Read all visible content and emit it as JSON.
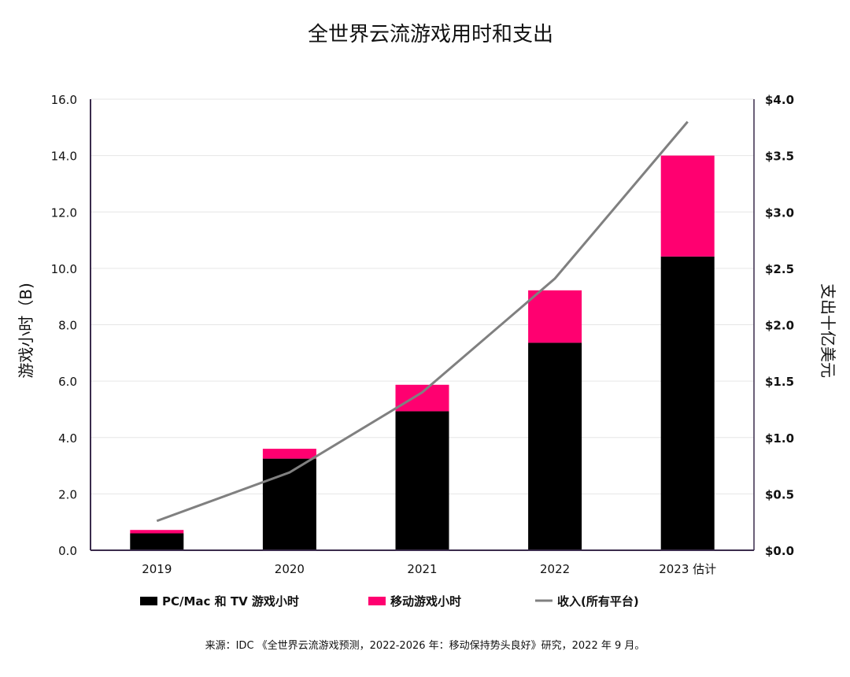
{
  "chart_data": {
    "type": "bar",
    "stacked": true,
    "title": "全世界云流游戏用时和支出",
    "categories": [
      "2019",
      "2020",
      "2021",
      "2022",
      "2023 估计"
    ],
    "ylabel": "游戏小时（B)",
    "y2label": "支出十亿美元",
    "ylim": [
      0,
      16
    ],
    "y2lim": [
      0,
      4
    ],
    "yticks": [
      "0.0",
      "2.0",
      "4.0",
      "6.0",
      "8.0",
      "10.0",
      "12.0",
      "14.0",
      "16.0"
    ],
    "y2ticks": [
      "$0.0",
      "$0.5",
      "$1.0",
      "$1.5",
      "$2.0",
      "$2.5",
      "$3.0",
      "$3.5",
      "$4.0"
    ],
    "grid": true,
    "legend_position": "bottom",
    "series": [
      {
        "name": "PC/Mac 和 TV 游戏小时",
        "type": "bar",
        "axis": "left",
        "color": "#000000",
        "values": [
          0.6,
          3.25,
          4.93,
          7.36,
          10.42
        ]
      },
      {
        "name": "移动游戏小时",
        "type": "bar",
        "axis": "left",
        "color": "#ff0070",
        "values": [
          0.12,
          0.35,
          0.94,
          1.86,
          3.58
        ]
      },
      {
        "name": "收入(所有平台)",
        "type": "line",
        "axis": "right",
        "color": "#808080",
        "values": [
          0.26,
          0.69,
          1.4,
          2.41,
          3.8
        ]
      }
    ],
    "source": "来源：IDC 《全世界云流游戏预测，2022-2026 年：移动保持势头良好》研究，2022 年 9 月。"
  }
}
